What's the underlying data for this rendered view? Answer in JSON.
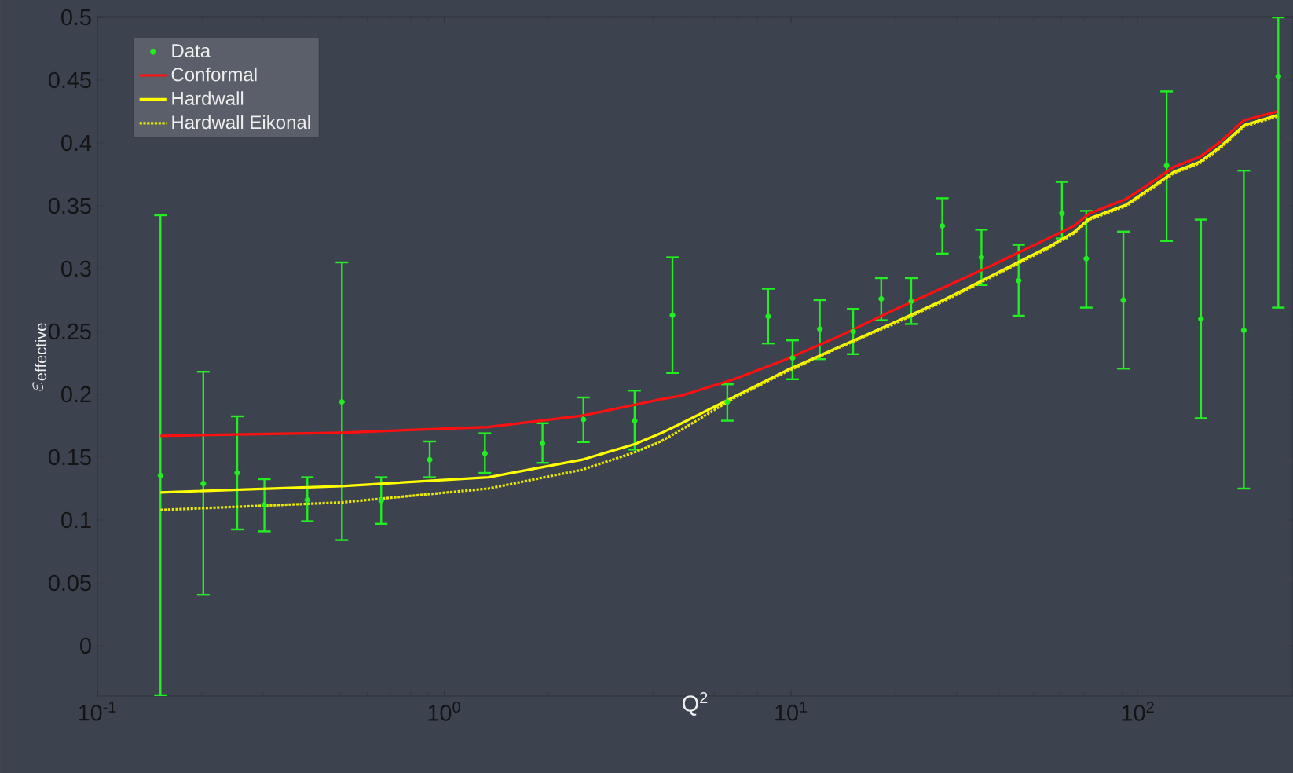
{
  "chart_data": {
    "type": "line",
    "xlabel": "Q$^{2}$",
    "ylabel": "\\varepsilon_{\\mathrm{effective}}",
    "log": "x",
    "legend": "top left",
    "xlim": [
      0.1,
      280
    ],
    "ylim": [
      -0.04,
      0.5
    ],
    "xticks": [
      {
        "value": 0.1,
        "label": "10$^{-1}$"
      },
      {
        "value": 1,
        "label": "10$^{0}$"
      },
      {
        "value": 10,
        "label": "10$^{1}$"
      },
      {
        "value": 100,
        "label": "10$^{2}$"
      }
    ],
    "yticks": [
      0,
      0.05,
      0.1,
      0.15,
      0.2,
      0.25,
      0.3,
      0.35,
      0.4,
      0.45,
      0.5
    ],
    "series": [
      {
        "name": "Data",
        "type": "scatter",
        "marker": "circle",
        "color": "#22ee22",
        "x": [
          0.152,
          0.202,
          0.253,
          0.303,
          0.403,
          0.507,
          0.658,
          0.908,
          1.31,
          1.92,
          2.52,
          3.54,
          4.55,
          6.55,
          8.59,
          10.1,
          12.1,
          15.1,
          18.2,
          22.2,
          27.3,
          35.4,
          45.3,
          60.4,
          71,
          90.8,
          121,
          152,
          202,
          254
        ],
        "values": [
          0.1355,
          0.129,
          0.1375,
          0.112,
          0.116,
          0.194,
          0.1155,
          0.148,
          0.153,
          0.161,
          0.18,
          0.179,
          0.263,
          0.194,
          0.262,
          0.229,
          0.252,
          0.25,
          0.276,
          0.274,
          0.334,
          0.309,
          0.2905,
          0.344,
          0.308,
          0.275,
          0.382,
          0.26,
          0.251,
          0.453
        ],
        "errors": [
          [
            -0.04,
            0.3425
          ],
          [
            0.0405,
            0.218
          ],
          [
            0.0925,
            0.1825
          ],
          [
            0.091,
            0.1325
          ],
          [
            0.099,
            0.134
          ],
          [
            0.084,
            0.305
          ],
          [
            0.097,
            0.134
          ],
          [
            0.134,
            0.1625
          ],
          [
            0.1375,
            0.169
          ],
          [
            0.1455,
            0.177
          ],
          [
            0.162,
            0.1975
          ],
          [
            0.156,
            0.203
          ],
          [
            0.217,
            0.309
          ],
          [
            0.179,
            0.208
          ],
          [
            0.2405,
            0.284
          ],
          [
            0.212,
            0.243
          ],
          [
            0.228,
            0.275
          ],
          [
            0.232,
            0.268
          ],
          [
            0.259,
            0.2925
          ],
          [
            0.256,
            0.2925
          ],
          [
            0.312,
            0.356
          ],
          [
            0.287,
            0.331
          ],
          [
            0.2625,
            0.319
          ],
          [
            0.324,
            0.369
          ],
          [
            0.269,
            0.346
          ],
          [
            0.2205,
            0.3295
          ],
          [
            0.322,
            0.441
          ],
          [
            0.181,
            0.339
          ],
          [
            0.125,
            0.378
          ],
          [
            0.269,
            0.5
          ]
        ]
      },
      {
        "name": "Conformal",
        "marker": "none",
        "line_style": "solid",
        "color": "#ff1010",
        "x": [
          0.152,
          0.506,
          1.34,
          2.5,
          4.2,
          4.84,
          6.85,
          9.7,
          13.7,
          19.4,
          27.5,
          38.9,
          55,
          65.4,
          72.6,
          92.7,
          110,
          127,
          151,
          173,
          202,
          252
        ],
        "values": [
          0.167,
          0.1695,
          0.174,
          0.183,
          0.196,
          0.199,
          0.212,
          0.228,
          0.246,
          0.266,
          0.285,
          0.304,
          0.324,
          0.334,
          0.344,
          0.3555,
          0.369,
          0.381,
          0.389,
          0.401,
          0.418,
          0.425
        ]
      },
      {
        "name": "Hardwall",
        "marker": "none",
        "line_style": "solid",
        "color": "#ffff00",
        "x": [
          0.152,
          0.506,
          1.34,
          2.5,
          3.55,
          4.21,
          4.84,
          6.85,
          9.7,
          13.7,
          19.4,
          27.5,
          38.9,
          55,
          65.4,
          72.6,
          92.7,
          110,
          127,
          151,
          173,
          202,
          252
        ],
        "values": [
          0.122,
          0.127,
          0.134,
          0.148,
          0.1605,
          0.169,
          0.177,
          0.198,
          0.219,
          0.2375,
          0.256,
          0.275,
          0.296,
          0.317,
          0.329,
          0.34,
          0.351,
          0.365,
          0.377,
          0.385,
          0.397,
          0.414,
          0.422
        ]
      },
      {
        "name": "Hardwall Eikonal",
        "marker": "none",
        "line_style": "dotted",
        "color": "#e8e800",
        "x": [
          0.152,
          0.506,
          1.34,
          2.5,
          3.55,
          4.21,
          4.84,
          6.85,
          9.7,
          13.7,
          19.4,
          27.5,
          38.9,
          55,
          65.4,
          72.6,
          92.7,
          110,
          127,
          151,
          173,
          202,
          252
        ],
        "values": [
          0.108,
          0.114,
          0.125,
          0.14,
          0.154,
          0.1625,
          0.172,
          0.197,
          0.218,
          0.237,
          0.255,
          0.274,
          0.295,
          0.316,
          0.328,
          0.339,
          0.35,
          0.364,
          0.376,
          0.384,
          0.396,
          0.413,
          0.421
        ]
      }
    ]
  }
}
